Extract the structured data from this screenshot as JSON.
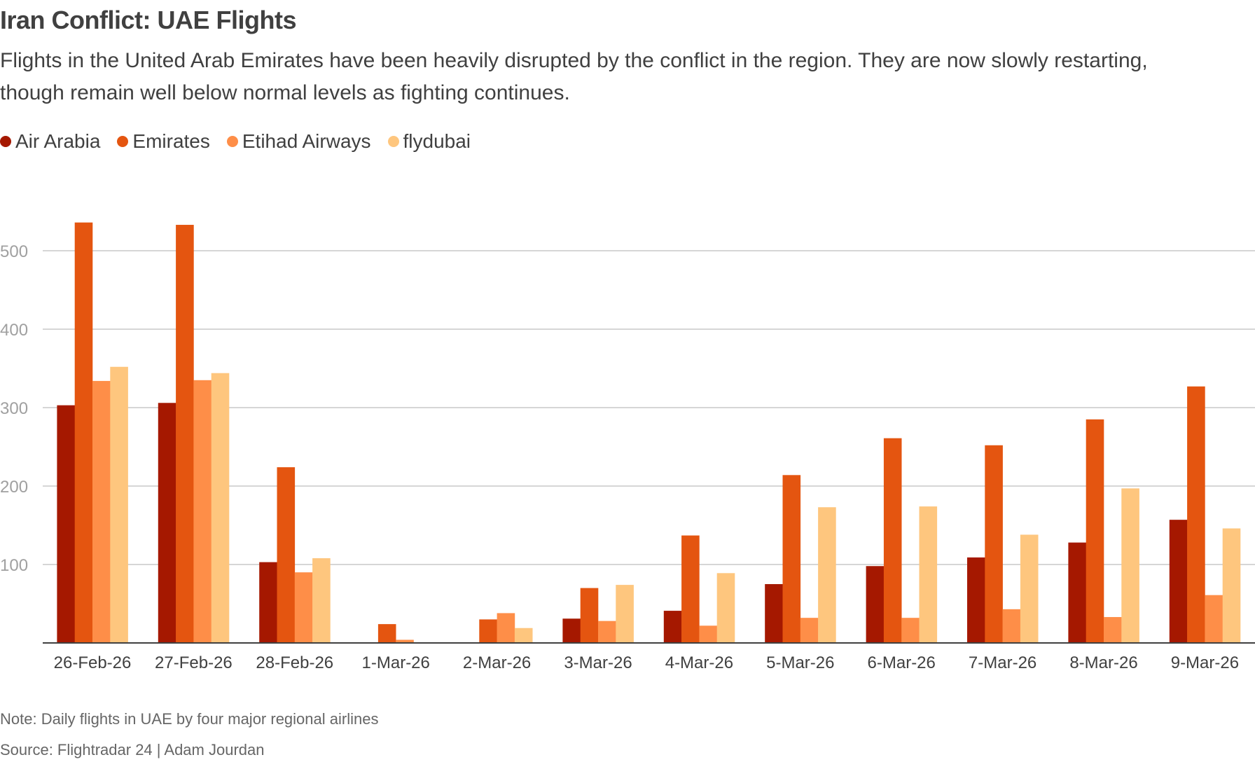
{
  "chart_data": {
    "type": "bar",
    "title": "Iran Conflict: UAE Flights",
    "subtitle": "Flights in the United Arab Emirates have been heavily disrupted by the conflict in the region. They are now slowly restarting, though remain well below normal levels as fighting continues.",
    "categories": [
      "26-Feb-26",
      "27-Feb-26",
      "28-Feb-26",
      "1-Mar-26",
      "2-Mar-26",
      "3-Mar-26",
      "4-Mar-26",
      "5-Mar-26",
      "6-Mar-26",
      "7-Mar-26",
      "8-Mar-26",
      "9-Mar-26"
    ],
    "series": [
      {
        "name": "Air Arabia",
        "color": "#a51800",
        "values": [
          303,
          306,
          103,
          0,
          0,
          31,
          41,
          75,
          98,
          109,
          128,
          157
        ]
      },
      {
        "name": "Emirates",
        "color": "#e45510",
        "values": [
          536,
          533,
          224,
          24,
          30,
          70,
          137,
          214,
          261,
          252,
          285,
          327
        ]
      },
      {
        "name": "Etihad Airways",
        "color": "#fe8e48",
        "values": [
          334,
          335,
          90,
          4,
          38,
          28,
          22,
          32,
          32,
          43,
          33,
          61
        ]
      },
      {
        "name": "flydubai",
        "color": "#fec67e",
        "values": [
          352,
          344,
          108,
          0,
          19,
          74,
          89,
          173,
          174,
          138,
          197,
          146
        ]
      }
    ],
    "yticks": [
      "100",
      "200",
      "300",
      "400",
      "500"
    ],
    "ylim": [
      0,
      560
    ],
    "xlabel": "",
    "ylabel": "",
    "grid": true,
    "legend": "top-left",
    "note": "Note: Daily flights in UAE by four major regional airlines",
    "source": "Source: Flightradar 24 | Adam Jourdan"
  }
}
